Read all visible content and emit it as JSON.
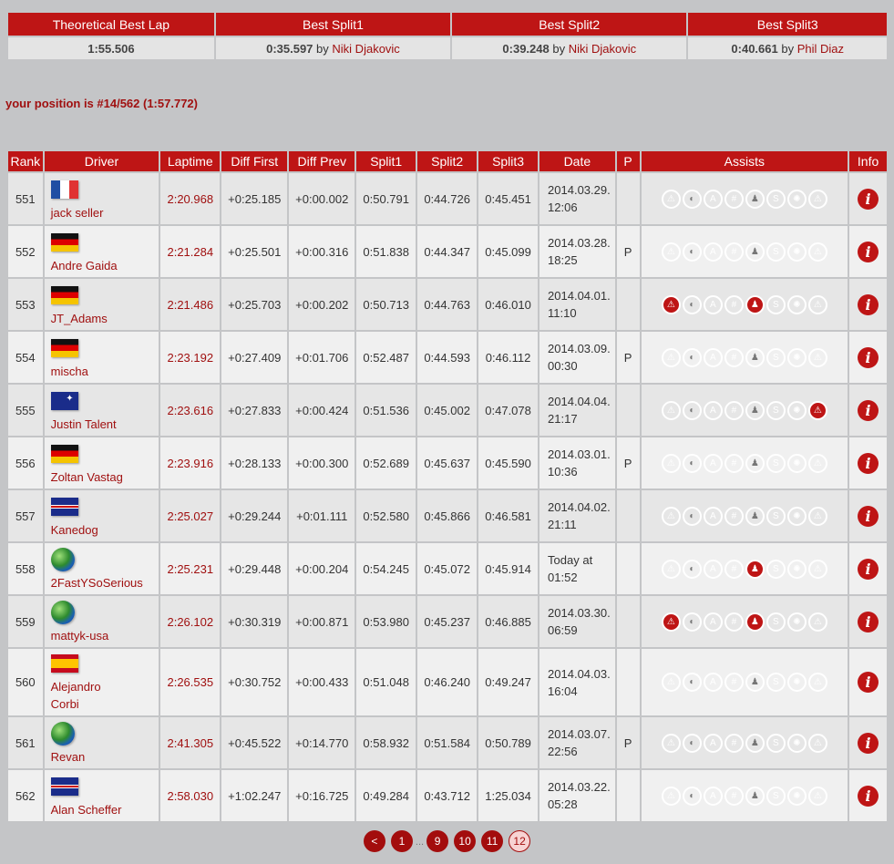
{
  "best": {
    "headers": [
      "Theoretical Best Lap",
      "Best Split1",
      "Best Split2",
      "Best Split3"
    ],
    "theoretical": "1:55.506",
    "splits": [
      {
        "time": "0:35.597",
        "by": "by",
        "driver": "Niki Djakovic"
      },
      {
        "time": "0:39.248",
        "by": "by",
        "driver": "Niki Djakovic"
      },
      {
        "time": "0:40.661",
        "by": "by",
        "driver": "Phil Diaz"
      }
    ]
  },
  "position_text": "your position is #14/562 (1:57.772)",
  "columns": [
    "Rank",
    "Driver",
    "Laptime",
    "Diff First",
    "Diff Prev",
    "Split1",
    "Split2",
    "Split3",
    "Date",
    "P",
    "Assists",
    "Info"
  ],
  "assist_icons": [
    "stability-control-icon",
    "abs-icon",
    "traction-control-icon",
    "auto-gearbox-icon",
    "auto-clutch-icon",
    "racing-line-icon",
    "tyre-wear-icon",
    "damage-icon"
  ],
  "rows": [
    {
      "rank": "551",
      "flag": "fr",
      "driver": "jack seller",
      "lap": "2:20.968",
      "df": "+0:25.185",
      "dp": "+0:00.002",
      "s1": "0:50.791",
      "s2": "0:44.726",
      "s3": "0:45.451",
      "d1": "2014.03.29.",
      "d2": "12:06",
      "p": "",
      "assists": [
        0,
        0,
        0,
        0,
        0,
        0,
        0,
        0
      ]
    },
    {
      "rank": "552",
      "flag": "de",
      "driver": "Andre Gaida",
      "lap": "2:21.284",
      "df": "+0:25.501",
      "dp": "+0:00.316",
      "s1": "0:51.838",
      "s2": "0:44.347",
      "s3": "0:45.099",
      "d1": "2014.03.28.",
      "d2": "18:25",
      "p": "P",
      "assists": [
        0,
        0,
        0,
        0,
        0,
        0,
        0,
        0
      ]
    },
    {
      "rank": "553",
      "flag": "de",
      "driver": "JT_Adams",
      "lap": "2:21.486",
      "df": "+0:25.703",
      "dp": "+0:00.202",
      "s1": "0:50.713",
      "s2": "0:44.763",
      "s3": "0:46.010",
      "d1": "2014.04.01.",
      "d2": "11:10",
      "p": "",
      "assists": [
        1,
        0,
        0,
        0,
        1,
        0,
        0,
        0
      ]
    },
    {
      "rank": "554",
      "flag": "de",
      "driver": "mischa",
      "lap": "2:23.192",
      "df": "+0:27.409",
      "dp": "+0:01.706",
      "s1": "0:52.487",
      "s2": "0:44.593",
      "s3": "0:46.112",
      "d1": "2014.03.09.",
      "d2": "00:30",
      "p": "P",
      "assists": [
        0,
        0,
        0,
        0,
        0,
        0,
        0,
        0
      ]
    },
    {
      "rank": "555",
      "flag": "au",
      "driver": "Justin Talent",
      "lap": "2:23.616",
      "df": "+0:27.833",
      "dp": "+0:00.424",
      "s1": "0:51.536",
      "s2": "0:45.002",
      "s3": "0:47.078",
      "d1": "2014.04.04.",
      "d2": "21:17",
      "p": "",
      "assists": [
        0,
        0,
        0,
        0,
        0,
        0,
        0,
        1
      ]
    },
    {
      "rank": "556",
      "flag": "de",
      "driver": "Zoltan Vastag",
      "lap": "2:23.916",
      "df": "+0:28.133",
      "dp": "+0:00.300",
      "s1": "0:52.689",
      "s2": "0:45.637",
      "s3": "0:45.590",
      "d1": "2014.03.01.",
      "d2": "10:36",
      "p": "P",
      "assists": [
        0,
        0,
        0,
        0,
        0,
        0,
        0,
        0
      ]
    },
    {
      "rank": "557",
      "flag": "gb",
      "driver": "Kanedog",
      "lap": "2:25.027",
      "df": "+0:29.244",
      "dp": "+0:01.111",
      "s1": "0:52.580",
      "s2": "0:45.866",
      "s3": "0:46.581",
      "d1": "2014.04.02.",
      "d2": "21:11",
      "p": "",
      "assists": [
        0,
        0,
        0,
        0,
        0,
        0,
        0,
        0
      ]
    },
    {
      "rank": "558",
      "flag": "world",
      "driver": "2FastYSoSerious",
      "lap": "2:25.231",
      "df": "+0:29.448",
      "dp": "+0:00.204",
      "s1": "0:54.245",
      "s2": "0:45.072",
      "s3": "0:45.914",
      "d1": "Today at",
      "d2": "01:52",
      "p": "",
      "assists": [
        0,
        0,
        0,
        0,
        1,
        0,
        0,
        0
      ]
    },
    {
      "rank": "559",
      "flag": "world",
      "driver": "mattyk-usa",
      "lap": "2:26.102",
      "df": "+0:30.319",
      "dp": "+0:00.871",
      "s1": "0:53.980",
      "s2": "0:45.237",
      "s3": "0:46.885",
      "d1": "2014.03.30.",
      "d2": "06:59",
      "p": "",
      "assists": [
        1,
        0,
        0,
        0,
        1,
        0,
        0,
        0
      ]
    },
    {
      "rank": "560",
      "flag": "es",
      "driver": "Alejandro Corbi",
      "lap": "2:26.535",
      "df": "+0:30.752",
      "dp": "+0:00.433",
      "s1": "0:51.048",
      "s2": "0:46.240",
      "s3": "0:49.247",
      "d1": "2014.04.03.",
      "d2": "16:04",
      "p": "",
      "assists": [
        0,
        0,
        0,
        0,
        0,
        0,
        0,
        0
      ]
    },
    {
      "rank": "561",
      "flag": "world",
      "driver": "Revan",
      "lap": "2:41.305",
      "df": "+0:45.522",
      "dp": "+0:14.770",
      "s1": "0:58.932",
      "s2": "0:51.584",
      "s3": "0:50.789",
      "d1": "2014.03.07.",
      "d2": "22:56",
      "p": "P",
      "assists": [
        0,
        0,
        0,
        0,
        0,
        0,
        0,
        0
      ]
    },
    {
      "rank": "562",
      "flag": "gb",
      "driver": "Alan Scheffer",
      "lap": "2:58.030",
      "df": "+1:02.247",
      "dp": "+0:16.725",
      "s1": "0:49.284",
      "s2": "0:43.712",
      "s3": "1:25.034",
      "d1": "2014.03.22.",
      "d2": "05:28",
      "p": "",
      "assists": [
        0,
        0,
        0,
        0,
        0,
        0,
        0,
        0
      ]
    }
  ],
  "info_label": "i",
  "pager": {
    "prev": "<",
    "pages": [
      "1",
      "9",
      "10",
      "11",
      "12"
    ],
    "ellipsis": "...",
    "current": "12"
  },
  "colors": {
    "accent": "#be1515",
    "background": "#c4c5c7"
  }
}
